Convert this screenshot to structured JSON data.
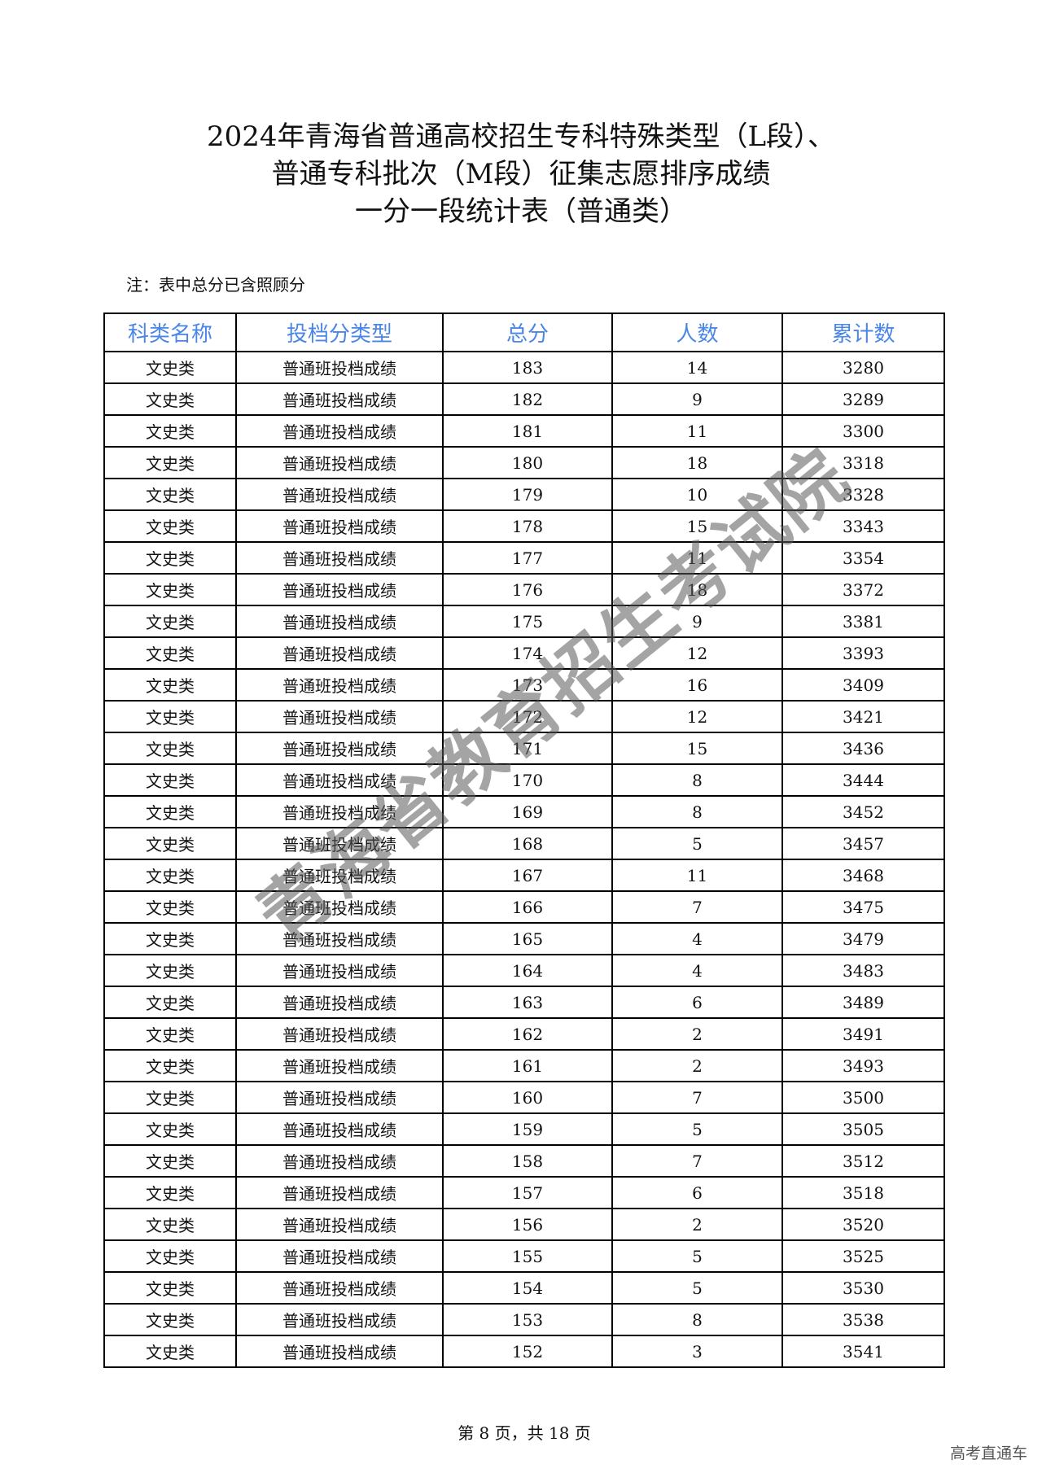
{
  "title_lines": [
    "2024年青海省普通高校招生专科特殊类型（L段）、",
    "普通专科批次（M段）征集志愿排序成绩",
    "一分一段统计表（普通类）"
  ],
  "note": "注：表中总分已含照顾分",
  "table": {
    "headers": [
      "科类名称",
      "投档分类型",
      "总分",
      "人数",
      "累计数"
    ],
    "header_color": "#4a86e8",
    "rows": [
      [
        "文史类",
        "普通班投档成绩",
        "183",
        "14",
        "3280"
      ],
      [
        "文史类",
        "普通班投档成绩",
        "182",
        "9",
        "3289"
      ],
      [
        "文史类",
        "普通班投档成绩",
        "181",
        "11",
        "3300"
      ],
      [
        "文史类",
        "普通班投档成绩",
        "180",
        "18",
        "3318"
      ],
      [
        "文史类",
        "普通班投档成绩",
        "179",
        "10",
        "3328"
      ],
      [
        "文史类",
        "普通班投档成绩",
        "178",
        "15",
        "3343"
      ],
      [
        "文史类",
        "普通班投档成绩",
        "177",
        "11",
        "3354"
      ],
      [
        "文史类",
        "普通班投档成绩",
        "176",
        "18",
        "3372"
      ],
      [
        "文史类",
        "普通班投档成绩",
        "175",
        "9",
        "3381"
      ],
      [
        "文史类",
        "普通班投档成绩",
        "174",
        "12",
        "3393"
      ],
      [
        "文史类",
        "普通班投档成绩",
        "173",
        "16",
        "3409"
      ],
      [
        "文史类",
        "普通班投档成绩",
        "172",
        "12",
        "3421"
      ],
      [
        "文史类",
        "普通班投档成绩",
        "171",
        "15",
        "3436"
      ],
      [
        "文史类",
        "普通班投档成绩",
        "170",
        "8",
        "3444"
      ],
      [
        "文史类",
        "普通班投档成绩",
        "169",
        "8",
        "3452"
      ],
      [
        "文史类",
        "普通班投档成绩",
        "168",
        "5",
        "3457"
      ],
      [
        "文史类",
        "普通班投档成绩",
        "167",
        "11",
        "3468"
      ],
      [
        "文史类",
        "普通班投档成绩",
        "166",
        "7",
        "3475"
      ],
      [
        "文史类",
        "普通班投档成绩",
        "165",
        "4",
        "3479"
      ],
      [
        "文史类",
        "普通班投档成绩",
        "164",
        "4",
        "3483"
      ],
      [
        "文史类",
        "普通班投档成绩",
        "163",
        "6",
        "3489"
      ],
      [
        "文史类",
        "普通班投档成绩",
        "162",
        "2",
        "3491"
      ],
      [
        "文史类",
        "普通班投档成绩",
        "161",
        "2",
        "3493"
      ],
      [
        "文史类",
        "普通班投档成绩",
        "160",
        "7",
        "3500"
      ],
      [
        "文史类",
        "普通班投档成绩",
        "159",
        "5",
        "3505"
      ],
      [
        "文史类",
        "普通班投档成绩",
        "158",
        "7",
        "3512"
      ],
      [
        "文史类",
        "普通班投档成绩",
        "157",
        "6",
        "3518"
      ],
      [
        "文史类",
        "普通班投档成绩",
        "156",
        "2",
        "3520"
      ],
      [
        "文史类",
        "普通班投档成绩",
        "155",
        "5",
        "3525"
      ],
      [
        "文史类",
        "普通班投档成绩",
        "154",
        "5",
        "3530"
      ],
      [
        "文史类",
        "普通班投档成绩",
        "153",
        "8",
        "3538"
      ],
      [
        "文史类",
        "普通班投档成绩",
        "152",
        "3",
        "3541"
      ]
    ]
  },
  "watermark": "青海省教育招生考试院",
  "footer": "第 8 页，共 18 页",
  "brand": "高考直通车"
}
